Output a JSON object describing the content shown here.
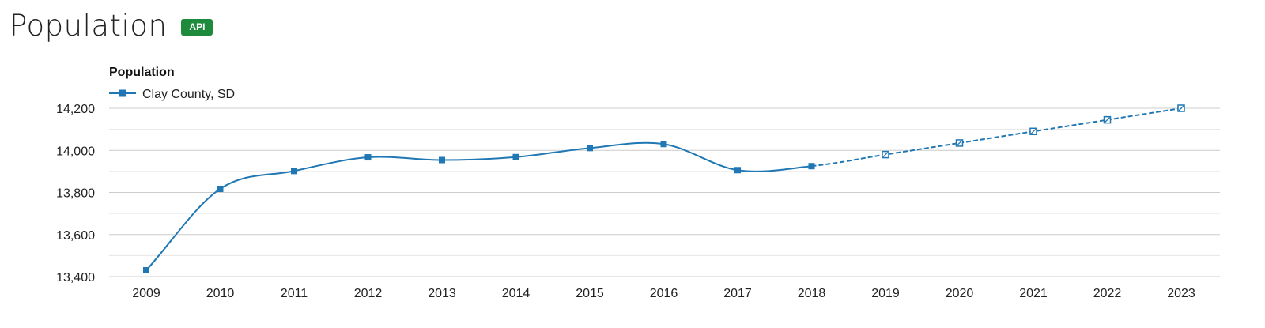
{
  "header": {
    "title": "Population",
    "badge": "API"
  },
  "colors": {
    "series": "#1f77b4",
    "badge": "#1e8a3c",
    "grid_major": "#cccccc",
    "grid_minor": "#e6e6e6"
  },
  "chart_data": {
    "type": "line",
    "title": "Population",
    "xlabel": "",
    "ylabel": "",
    "x": [
      2009,
      2010,
      2011,
      2012,
      2013,
      2014,
      2015,
      2016,
      2017,
      2018,
      2019,
      2020,
      2021,
      2022,
      2023
    ],
    "ylim": [
      13400,
      14200
    ],
    "yticks": [
      13400,
      13600,
      13800,
      14000,
      14200
    ],
    "ytick_labels": [
      "13,400",
      "13,600",
      "13,800",
      "14,000",
      "14,200"
    ],
    "grid": true,
    "legend_position": "top-left",
    "series": [
      {
        "name": "Clay County, SD",
        "values": [
          13430,
          13817,
          13902,
          13967,
          13954,
          13968,
          14011,
          14030,
          13906,
          13925,
          13980,
          14035,
          14090,
          14145,
          14200
        ],
        "projected_from_index": 9
      }
    ]
  }
}
